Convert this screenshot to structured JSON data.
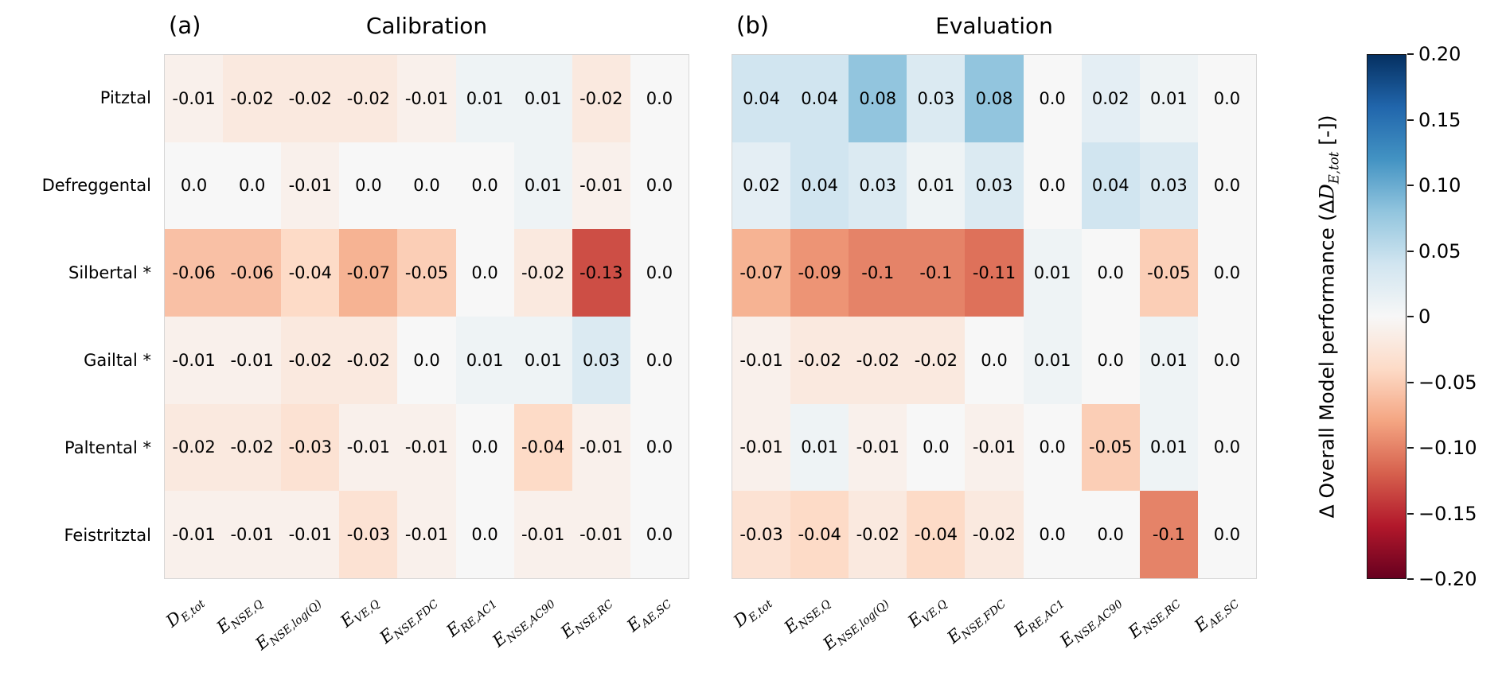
{
  "chart_data": [
    {
      "type": "heatmap",
      "panel_label": "(a)",
      "title": "Calibration",
      "rows": [
        "Pitztal",
        "Defreggental",
        "Silbertal *",
        "Gailtal *",
        "Paltental *",
        "Feistritztal"
      ],
      "columns": [
        {
          "base": "D",
          "sub": "E,tot"
        },
        {
          "base": "E",
          "sub": "NSE,Q"
        },
        {
          "base": "E",
          "sub": "NSE,log(Q)"
        },
        {
          "base": "E",
          "sub": "VE,Q"
        },
        {
          "base": "E",
          "sub": "NSE,FDC"
        },
        {
          "base": "E",
          "sub": "RE,AC1"
        },
        {
          "base": "E",
          "sub": "NSE,AC90"
        },
        {
          "base": "E",
          "sub": "NSE,RC"
        },
        {
          "base": "E",
          "sub": "AE,SC"
        }
      ],
      "values": [
        [
          "-0.01",
          "-0.02",
          "-0.02",
          "-0.02",
          "-0.01",
          "0.01",
          "0.01",
          "-0.02",
          "0.0"
        ],
        [
          "0.0",
          "0.0",
          "-0.01",
          "0.0",
          "0.0",
          "0.0",
          "0.01",
          "-0.01",
          "0.0"
        ],
        [
          "-0.06",
          "-0.06",
          "-0.04",
          "-0.07",
          "-0.05",
          "0.0",
          "-0.02",
          "-0.13",
          "0.0"
        ],
        [
          "-0.01",
          "-0.01",
          "-0.02",
          "-0.02",
          "0.0",
          "0.01",
          "0.01",
          "0.03",
          "0.0"
        ],
        [
          "-0.02",
          "-0.02",
          "-0.03",
          "-0.01",
          "-0.01",
          "0.0",
          "-0.04",
          "-0.01",
          "0.0"
        ],
        [
          "-0.01",
          "-0.01",
          "-0.01",
          "-0.03",
          "-0.01",
          "0.0",
          "-0.01",
          "-0.01",
          "0.0"
        ]
      ]
    },
    {
      "type": "heatmap",
      "panel_label": "(b)",
      "title": "Evaluation",
      "rows": [
        "Pitztal",
        "Defreggental",
        "Silbertal *",
        "Gailtal *",
        "Paltental *",
        "Feistritztal"
      ],
      "columns": [
        {
          "base": "D",
          "sub": "E,tot"
        },
        {
          "base": "E",
          "sub": "NSE,Q"
        },
        {
          "base": "E",
          "sub": "NSE,log(Q)"
        },
        {
          "base": "E",
          "sub": "VE,Q"
        },
        {
          "base": "E",
          "sub": "NSE,FDC"
        },
        {
          "base": "E",
          "sub": "RE,AC1"
        },
        {
          "base": "E",
          "sub": "NSE,AC90"
        },
        {
          "base": "E",
          "sub": "NSE,RC"
        },
        {
          "base": "E",
          "sub": "AE,SC"
        }
      ],
      "values": [
        [
          "0.04",
          "0.04",
          "0.08",
          "0.03",
          "0.08",
          "0.0",
          "0.02",
          "0.01",
          "0.0"
        ],
        [
          "0.02",
          "0.04",
          "0.03",
          "0.01",
          "0.03",
          "0.0",
          "0.04",
          "0.03",
          "0.0"
        ],
        [
          "-0.07",
          "-0.09",
          "-0.1",
          "-0.1",
          "-0.11",
          "0.01",
          "0.0",
          "-0.05",
          "0.0"
        ],
        [
          "-0.01",
          "-0.02",
          "-0.02",
          "-0.02",
          "0.0",
          "0.01",
          "0.0",
          "0.01",
          "0.0"
        ],
        [
          "-0.01",
          "0.01",
          "-0.01",
          "0.0",
          "-0.01",
          "0.0",
          "-0.05",
          "0.01",
          "0.0"
        ],
        [
          "-0.03",
          "-0.04",
          "-0.02",
          "-0.04",
          "-0.02",
          "0.0",
          "0.0",
          "-0.1",
          "0.0"
        ]
      ]
    }
  ],
  "colorbar": {
    "label_prefix": "Δ Overall Model performance (Δ",
    "label_var": "D",
    "label_sub": "E,tot",
    "label_suffix": " [-])",
    "ticks": [
      "0.20",
      "0.15",
      "0.10",
      "0.05",
      "0",
      "−0.05",
      "−0.10",
      "−0.15",
      "−0.20"
    ],
    "vmin": -0.2,
    "vmax": 0.2,
    "colormap_name": "RdBu",
    "colormap": [
      "#67001f",
      "#b2182b",
      "#d6604d",
      "#f4a582",
      "#fddbc7",
      "#f7f7f7",
      "#d1e5f0",
      "#92c5de",
      "#4393c3",
      "#2166ac",
      "#053061"
    ]
  }
}
